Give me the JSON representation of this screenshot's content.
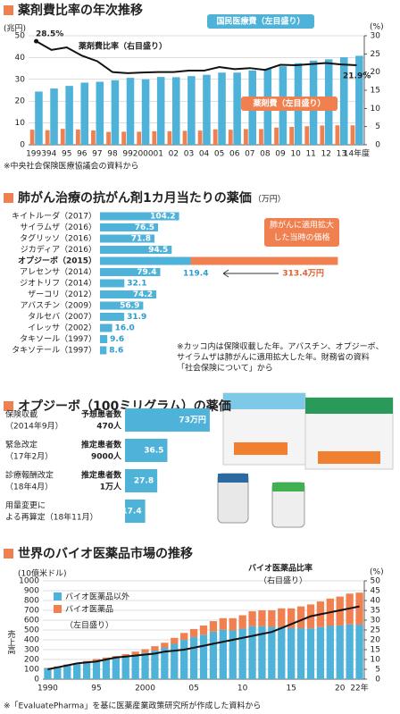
{
  "chart_data": [
    {
      "type": "bar",
      "title": "薬剤費比率の年次推移",
      "ylabel": "(兆円)",
      "y2label": "(%)",
      "categories": [
        "1993",
        "94",
        "95",
        "96",
        "97",
        "98",
        "99",
        "2000",
        "01",
        "02",
        "03",
        "04",
        "05",
        "06",
        "07",
        "08",
        "09",
        "10",
        "11",
        "12",
        "13",
        "14年度"
      ],
      "series": [
        {
          "name": "国民医療費（左目盛り）",
          "color": "#4fb3d9",
          "values": [
            24.4,
            25.8,
            27.0,
            28.5,
            28.9,
            29.6,
            30.7,
            30.1,
            31.1,
            31.0,
            31.5,
            32.1,
            33.1,
            33.1,
            34.1,
            34.8,
            36.0,
            37.4,
            38.6,
            39.2,
            40.1,
            40.8
          ]
        },
        {
          "name": "薬剤費（左目盛り）",
          "color": "#f08050",
          "values": [
            6.9,
            6.7,
            7.3,
            7.0,
            6.6,
            5.9,
            6.0,
            6.0,
            6.2,
            6.2,
            6.4,
            6.5,
            7.1,
            6.9,
            7.2,
            7.2,
            7.9,
            8.2,
            8.5,
            8.8,
            8.9,
            8.9
          ]
        },
        {
          "name": "薬剤費比率（右目盛り）",
          "color": "#111111",
          "axis": "y2",
          "values": [
            28.5,
            26.1,
            26.8,
            24.5,
            23.0,
            20.0,
            19.7,
            19.9,
            20.0,
            20.0,
            20.4,
            20.4,
            21.4,
            20.8,
            21.1,
            20.6,
            22.0,
            21.9,
            22.2,
            22.5,
            22.1,
            21.9
          ]
        }
      ],
      "value_labels": [
        "28.5%",
        "21.9%"
      ],
      "ylim": [
        0,
        50
      ],
      "yticks": [
        0,
        10,
        20,
        30,
        40,
        50
      ],
      "y2lim": [
        0,
        30
      ],
      "y2ticks": [
        0,
        5,
        10,
        15,
        20,
        25,
        30
      ],
      "grid": true,
      "source": "※中央社会保険医療協議会の資料から"
    },
    {
      "type": "barh",
      "title": "肺がん治療の抗がん剤1カ月当たりの薬価",
      "unit": "（万円）",
      "categories": [
        "キイトルーダ（2017）",
        "サイラムザ（2016）",
        "タグリッソ（2016）",
        "ジカディア（2016）",
        "オプジーボ（2015）",
        "アレセンサ（2014）",
        "ジオトリフ（2014）",
        "ザーコリ（2012）",
        "アバスチン（2009）",
        "タルセバ（2007）",
        "イレッサ（2002）",
        "タキソール（1997）",
        "タキソテール（1997）"
      ],
      "values": [
        104.2,
        76.5,
        71.8,
        94.5,
        313.4,
        79.4,
        32.1,
        74.2,
        56.9,
        31.9,
        16.0,
        9.6,
        8.6
      ],
      "value_labels": [
        "104.2",
        "76.5",
        "71.8",
        "94.5",
        "313.4万円",
        "79.4",
        "32.1",
        "74.2",
        "56.9",
        "31.9",
        "16.0",
        "9.6",
        "8.6"
      ],
      "color": "#4fb3d9",
      "colors": [
        "#4fb3d9",
        "#4fb3d9",
        "#4fb3d9",
        "#4fb3d9",
        "#f08050",
        "#4fb3d9",
        "#4fb3d9",
        "#4fb3d9",
        "#4fb3d9",
        "#4fb3d9",
        "#4fb3d9",
        "#4fb3d9",
        "#4fb3d9"
      ],
      "current_price": 119.4,
      "current_price_label": "119.4",
      "callout": [
        "肺がんに適用拡大",
        "した当時の価格"
      ],
      "note": [
        "※カッコ内は保険収載した年。アバスチン、オプジーボ、",
        "サイラムザは肺がんに適用拡大した年。財務省の資料",
        "「社会保険について」から"
      ]
    },
    {
      "type": "barh",
      "title": "オプジーボ（100ミリグラム）の薬価",
      "categories": [
        [
          "保険収載",
          "（2014年9月）"
        ],
        [
          "緊急改定",
          "（17年2月）"
        ],
        [
          "診療報酬改定",
          "（18年4月）"
        ],
        [
          "用量変更に",
          "よる再算定（18年11月）"
        ]
      ],
      "patients": [
        [
          "予想患者数",
          "470人"
        ],
        [
          "推定患者数",
          "9000人"
        ],
        [
          "推定患者数",
          "1万人"
        ],
        null
      ],
      "values": [
        73,
        36.5,
        27.8,
        17.4
      ],
      "value_labels": [
        "73万円",
        "36.5",
        "27.8",
        "17.4"
      ],
      "color": "#4fb3d9"
    },
    {
      "type": "bar",
      "stacked": true,
      "title": "世界のバイオ医薬品市場の推移",
      "ylabel": "(10億米ドル)",
      "y2label": "(%)",
      "axis_title": "売上高",
      "categories": [
        "1990",
        null,
        null,
        null,
        null,
        "95",
        null,
        null,
        null,
        null,
        "2000",
        null,
        null,
        null,
        null,
        "05",
        null,
        null,
        null,
        null,
        "10",
        null,
        null,
        null,
        null,
        "15",
        null,
        null,
        null,
        null,
        "20",
        null,
        "22年"
      ],
      "series": [
        {
          "name": "バイオ医薬品以外",
          "color": "#4fb3d9",
          "values": [
            109,
            122,
            139,
            152,
            169,
            187,
            198,
            209,
            226,
            246,
            267,
            291,
            318,
            359,
            399,
            428,
            452,
            484,
            502,
            496,
            513,
            538,
            539,
            532,
            533,
            518,
            518,
            517,
            529,
            541,
            546,
            557,
            554
          ]
        },
        {
          "name": "バイオ医薬品",
          "color": "#f08050",
          "values": [
            6,
            8,
            11,
            13,
            16,
            18,
            22,
            26,
            29,
            34,
            38,
            44,
            52,
            61,
            71,
            82,
            93,
            106,
            118,
            124,
            137,
            152,
            161,
            168,
            187,
            202,
            222,
            243,
            261,
            279,
            294,
            313,
            326
          ]
        },
        {
          "name": "バイオ医薬品比率",
          "color": "#111111",
          "axis": "y2",
          "values": [
            5,
            6,
            7,
            8,
            8.5,
            9,
            10,
            11,
            11.5,
            12,
            12.5,
            13,
            14,
            14.5,
            15,
            16,
            17,
            18,
            19,
            20,
            21,
            22,
            23,
            24,
            26,
            28,
            30,
            32,
            33,
            34,
            35,
            36,
            37
          ]
        }
      ],
      "legend_note": "（左目盛り）",
      "line_note": "（右目盛り）",
      "ylim": [
        0,
        1000
      ],
      "yticks": [
        0,
        100,
        200,
        300,
        400,
        500,
        600,
        700,
        800,
        900,
        1000
      ],
      "y2lim": [
        0,
        50
      ],
      "y2ticks": [
        0,
        5,
        10,
        15,
        20,
        25,
        30,
        35,
        40,
        45,
        50
      ],
      "grid": true,
      "source": "※「EvaluatePharma」を基に医薬産業政策研究所が作成した資料から"
    }
  ]
}
